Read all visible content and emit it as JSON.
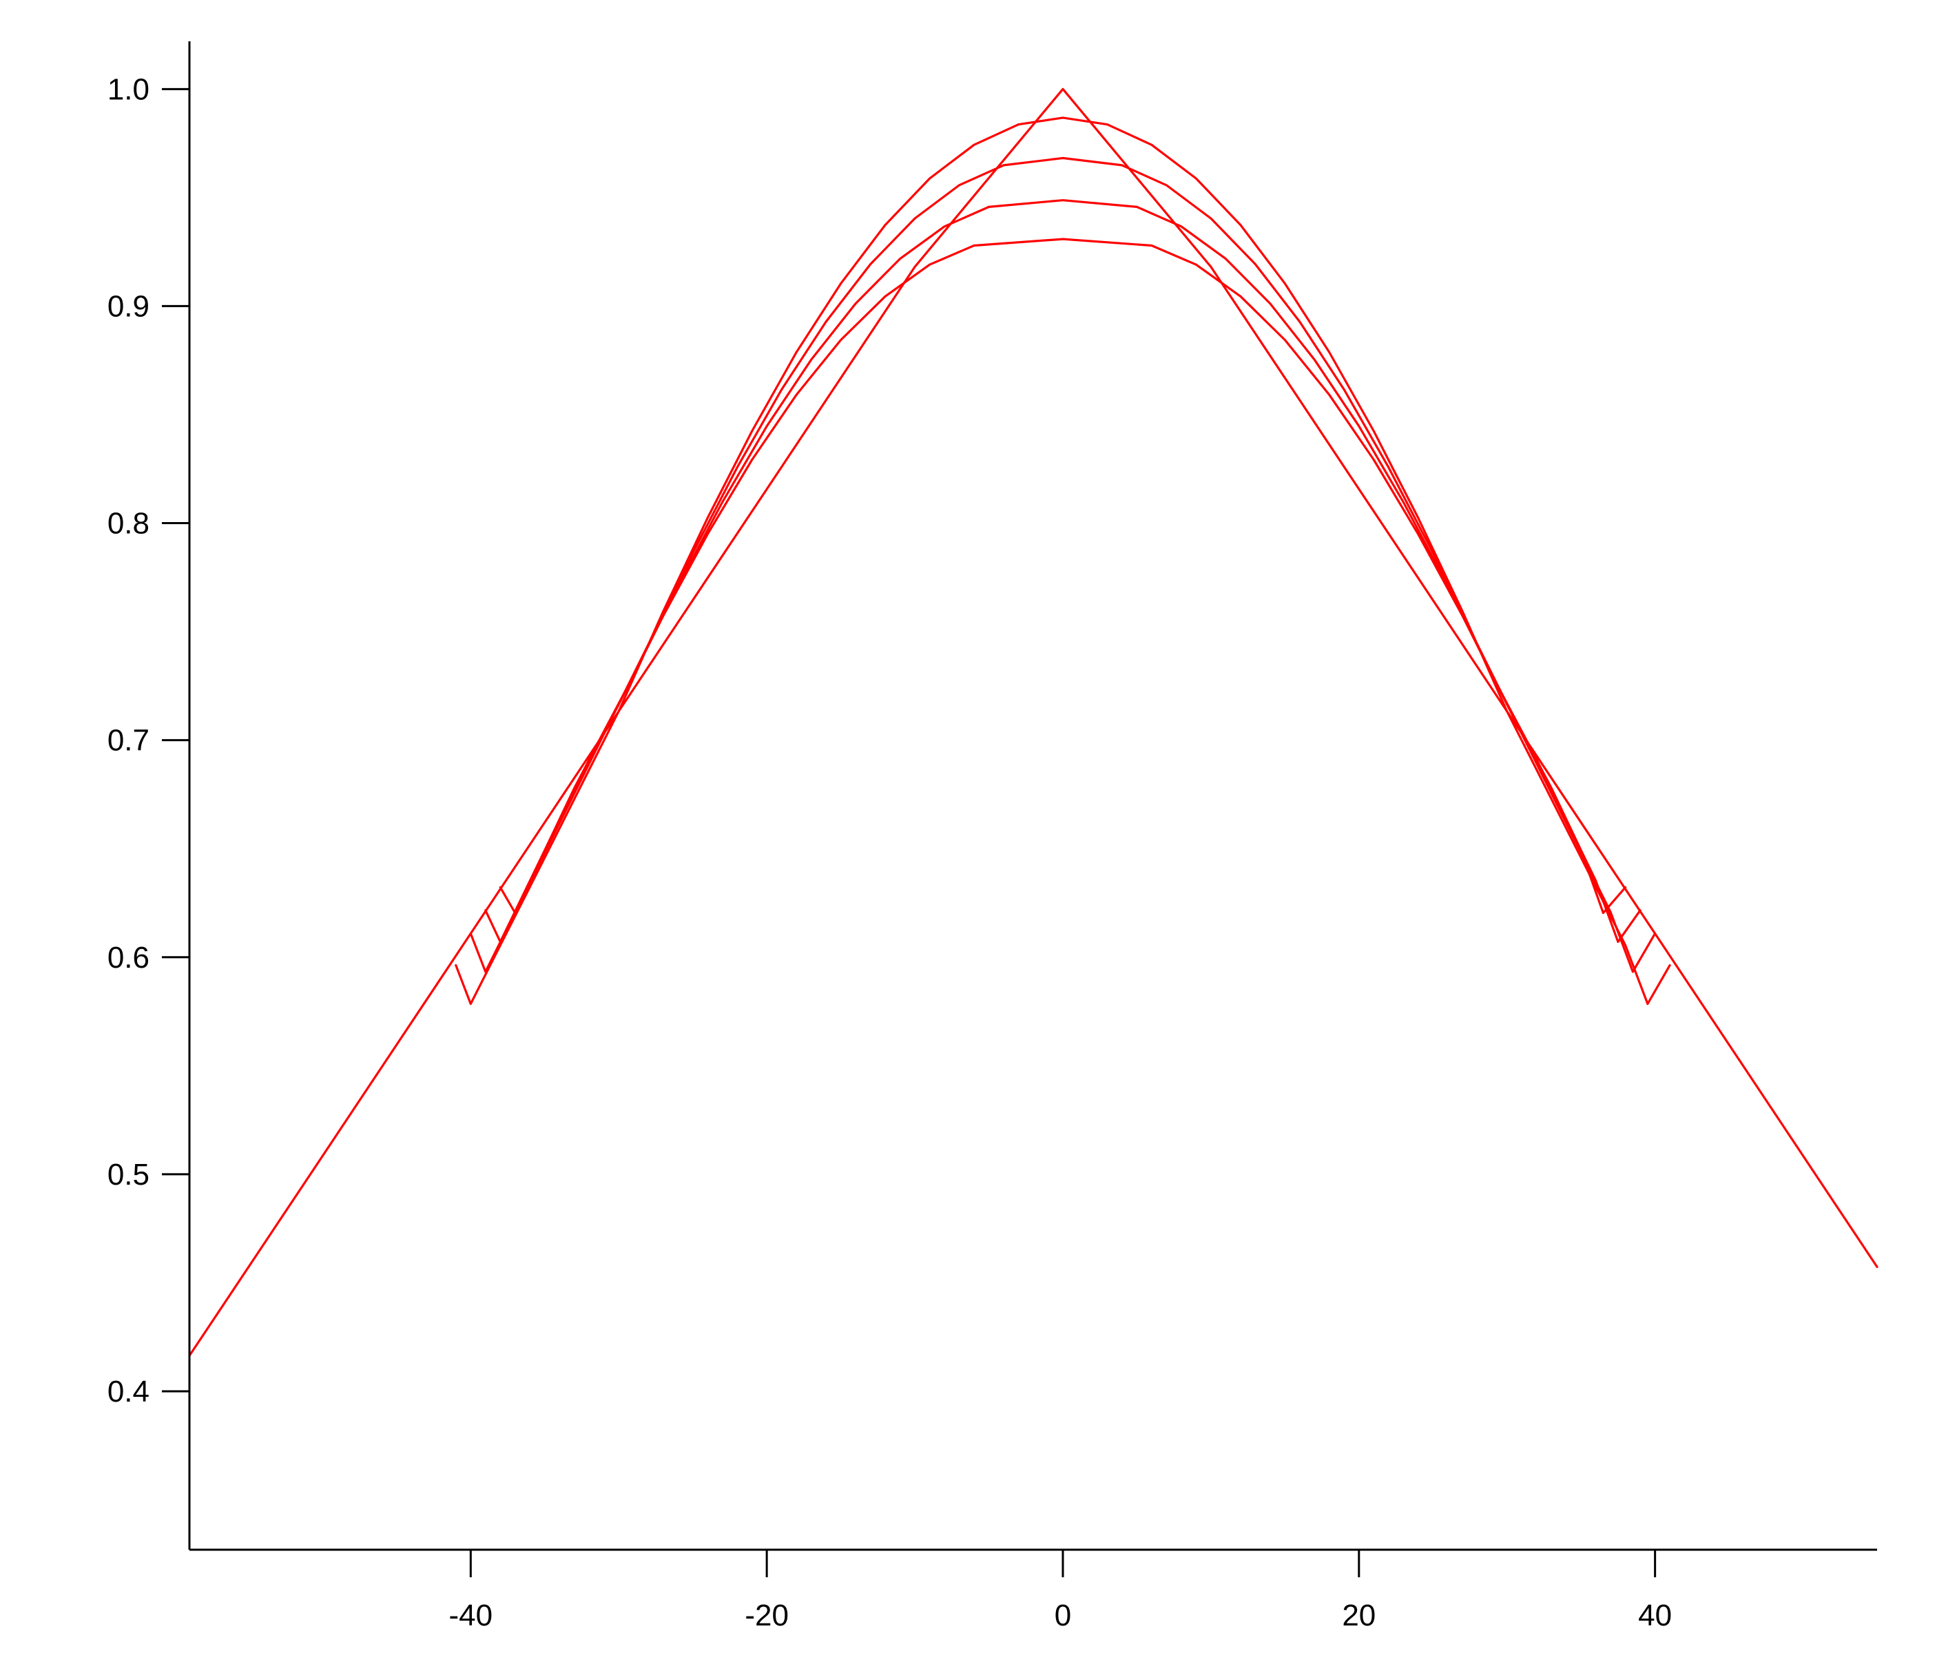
{
  "chart_data": {
    "type": "line",
    "title": "",
    "xlabel": "",
    "ylabel": "",
    "xlim": [
      -59,
      55
    ],
    "ylim": [
      0.327,
      1.022
    ],
    "x_ticks": [
      -40,
      -20,
      0,
      20,
      40
    ],
    "x_tick_labels": [
      "-40",
      "-20",
      "0",
      "20",
      "40"
    ],
    "y_ticks": [
      0.4,
      0.5,
      0.6,
      0.7,
      0.8,
      0.9,
      1.0
    ],
    "y_tick_labels": [
      "0.4",
      "0.5",
      "0.6",
      "0.7",
      "0.8",
      "0.9",
      "1.0"
    ],
    "grid": false,
    "legend": "none",
    "line_color": "#ff0000",
    "series": [
      {
        "values": [
          [
            -59,
            0.4164
          ],
          [
            -50,
            0.5085
          ],
          [
            -40,
            0.6109
          ],
          [
            -30,
            0.7133
          ],
          [
            -20,
            0.8157
          ],
          [
            -10,
            0.9181
          ],
          [
            0,
            1.0
          ],
          [
            10,
            0.9181
          ],
          [
            20,
            0.8157
          ],
          [
            30,
            0.7133
          ],
          [
            40,
            0.6109
          ],
          [
            55,
            0.4573
          ]
        ]
      },
      {
        "values": [
          [
            -41,
            0.5963
          ],
          [
            -40,
            0.5785
          ],
          [
            -38,
            0.6055
          ],
          [
            -36,
            0.6324
          ],
          [
            -34,
            0.6594
          ],
          [
            -32,
            0.6864
          ],
          [
            -30,
            0.7133
          ],
          [
            -27,
            0.7593
          ],
          [
            -24,
            0.8024
          ],
          [
            -21,
            0.8424
          ],
          [
            -18,
            0.8787
          ],
          [
            -15,
            0.9104
          ],
          [
            -12,
            0.9374
          ],
          [
            -9,
            0.9588
          ],
          [
            -6,
            0.9743
          ],
          [
            -3,
            0.9837
          ],
          [
            0,
            0.9868
          ],
          [
            3,
            0.9837
          ],
          [
            6,
            0.9743
          ],
          [
            9,
            0.9588
          ],
          [
            12,
            0.9374
          ],
          [
            15,
            0.9104
          ],
          [
            18,
            0.8787
          ],
          [
            21,
            0.8424
          ],
          [
            24,
            0.8024
          ],
          [
            27,
            0.7593
          ],
          [
            30,
            0.7133
          ],
          [
            32,
            0.6864
          ],
          [
            34,
            0.6594
          ],
          [
            36,
            0.6324
          ],
          [
            38,
            0.6055
          ],
          [
            39.5,
            0.5785
          ],
          [
            41,
            0.5963
          ]
        ]
      },
      {
        "values": [
          [
            -40,
            0.6109
          ],
          [
            -39,
            0.5933
          ],
          [
            -37,
            0.6207
          ],
          [
            -35,
            0.6481
          ],
          [
            -33,
            0.6755
          ],
          [
            -31,
            0.7029
          ],
          [
            -28,
            0.7441
          ],
          [
            -25,
            0.7863
          ],
          [
            -22,
            0.8257
          ],
          [
            -19,
            0.8615
          ],
          [
            -16,
            0.8928
          ],
          [
            -13,
            0.9193
          ],
          [
            -10,
            0.9404
          ],
          [
            -7,
            0.9557
          ],
          [
            -4,
            0.9649
          ],
          [
            0,
            0.9682
          ],
          [
            4,
            0.9649
          ],
          [
            7,
            0.9557
          ],
          [
            10,
            0.9404
          ],
          [
            13,
            0.9193
          ],
          [
            16,
            0.8928
          ],
          [
            19,
            0.8615
          ],
          [
            22,
            0.8257
          ],
          [
            25,
            0.7863
          ],
          [
            28,
            0.7441
          ],
          [
            31,
            0.7029
          ],
          [
            33,
            0.6755
          ],
          [
            35,
            0.6481
          ],
          [
            37,
            0.6207
          ],
          [
            38.5,
            0.5933
          ],
          [
            40,
            0.6109
          ]
        ]
      },
      {
        "values": [
          [
            -39,
            0.6216
          ],
          [
            -38,
            0.6071
          ],
          [
            -36,
            0.6352
          ],
          [
            -34,
            0.6633
          ],
          [
            -32,
            0.6912
          ],
          [
            -29,
            0.7298
          ],
          [
            -26,
            0.7712
          ],
          [
            -23,
            0.8097
          ],
          [
            -20,
            0.8447
          ],
          [
            -17,
            0.8753
          ],
          [
            -14,
            0.9012
          ],
          [
            -11,
            0.9218
          ],
          [
            -8,
            0.9367
          ],
          [
            -5,
            0.9457
          ],
          [
            0,
            0.9488
          ],
          [
            5,
            0.9457
          ],
          [
            8,
            0.9367
          ],
          [
            11,
            0.9218
          ],
          [
            14,
            0.9012
          ],
          [
            17,
            0.8753
          ],
          [
            20,
            0.8447
          ],
          [
            23,
            0.8097
          ],
          [
            26,
            0.7712
          ],
          [
            29,
            0.7298
          ],
          [
            32,
            0.6912
          ],
          [
            34,
            0.6633
          ],
          [
            36,
            0.6352
          ],
          [
            37.5,
            0.6071
          ],
          [
            39,
            0.6216
          ]
        ]
      },
      {
        "values": [
          [
            -38,
            0.6322
          ],
          [
            -37,
            0.6204
          ],
          [
            -35,
            0.6492
          ],
          [
            -33,
            0.678
          ],
          [
            -30,
            0.7165
          ],
          [
            -27,
            0.7572
          ],
          [
            -24,
            0.7949
          ],
          [
            -21,
            0.8292
          ],
          [
            -18,
            0.8591
          ],
          [
            -15,
            0.8844
          ],
          [
            -12,
            0.9045
          ],
          [
            -9,
            0.9191
          ],
          [
            -6,
            0.9279
          ],
          [
            0,
            0.9309
          ],
          [
            6,
            0.9279
          ],
          [
            9,
            0.9191
          ],
          [
            12,
            0.9045
          ],
          [
            15,
            0.8844
          ],
          [
            18,
            0.8591
          ],
          [
            21,
            0.8292
          ],
          [
            24,
            0.7949
          ],
          [
            27,
            0.7572
          ],
          [
            30,
            0.7165
          ],
          [
            33,
            0.678
          ],
          [
            35,
            0.6492
          ],
          [
            36.5,
            0.6204
          ],
          [
            38,
            0.6322
          ]
        ]
      }
    ]
  }
}
